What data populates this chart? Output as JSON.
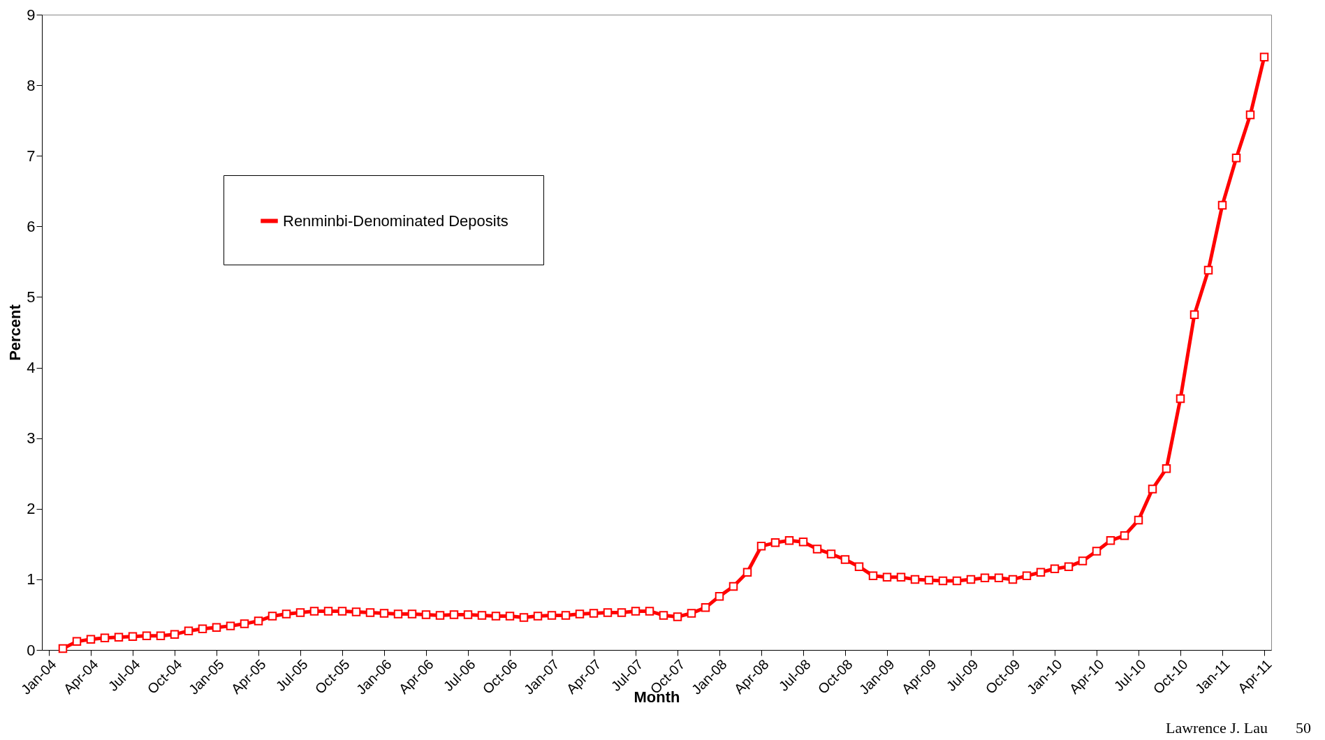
{
  "chart_data": {
    "type": "line",
    "xlabel": "Month",
    "ylabel": "Percent",
    "annotations": [
      "Lawrence J. Lau",
      "50"
    ],
    "categories": [
      "Jan-04",
      null,
      null,
      "Apr-04",
      null,
      null,
      "Jul-04",
      null,
      null,
      "Oct-04",
      null,
      null,
      "Jan-05",
      null,
      null,
      "Apr-05",
      null,
      null,
      "Jul-05",
      null,
      null,
      "Oct-05",
      null,
      null,
      "Jan-06",
      null,
      null,
      "Apr-06",
      null,
      null,
      "Jul-06",
      null,
      null,
      "Oct-06",
      null,
      null,
      "Jan-07",
      null,
      null,
      "Apr-07",
      null,
      null,
      "Jul-07",
      null,
      null,
      "Oct-07",
      null,
      null,
      "Jan-08",
      null,
      null,
      "Apr-08",
      null,
      null,
      "Jul-08",
      null,
      null,
      "Oct-08",
      null,
      null,
      "Jan-09",
      null,
      null,
      "Apr-09",
      null,
      null,
      "Jul-09",
      null,
      null,
      "Oct-09",
      null,
      null,
      "Jan-10",
      null,
      null,
      "Apr-10",
      null,
      null,
      "Jul-10",
      null,
      null,
      "Oct-10",
      null,
      null,
      "Jan-11",
      null,
      null,
      "Apr-11"
    ],
    "series": [
      {
        "name": "Renminbi-Denominated Deposits",
        "color": "#ff0000",
        "values": [
          null,
          0.02,
          0.12,
          0.15,
          0.17,
          0.18,
          0.19,
          0.2,
          0.2,
          0.22,
          0.27,
          0.3,
          0.32,
          0.34,
          0.37,
          0.41,
          0.48,
          0.51,
          0.53,
          0.55,
          0.55,
          0.55,
          0.54,
          0.53,
          0.52,
          0.51,
          0.51,
          0.5,
          0.49,
          0.5,
          0.5,
          0.49,
          0.48,
          0.48,
          0.46,
          0.48,
          0.49,
          0.49,
          0.51,
          0.52,
          0.53,
          0.53,
          0.55,
          0.55,
          0.49,
          0.47,
          0.52,
          0.6,
          0.76,
          0.9,
          1.1,
          1.47,
          1.52,
          1.55,
          1.53,
          1.43,
          1.36,
          1.28,
          1.18,
          1.05,
          1.03,
          1.03,
          1.0,
          0.99,
          0.98,
          0.98,
          1.0,
          1.02,
          1.02,
          1.0,
          1.05,
          1.1,
          1.15,
          1.18,
          1.26,
          1.4,
          1.55,
          1.62,
          1.84,
          2.28,
          2.57,
          3.56,
          4.75,
          5.38,
          6.3,
          6.97,
          7.58,
          8.4
        ]
      }
    ],
    "ylim": [
      0,
      9
    ],
    "yticks": [
      0,
      1,
      2,
      3,
      4,
      5,
      6,
      7,
      8,
      9
    ],
    "grid": false,
    "legend": "top left",
    "marker": "square",
    "line_style": "solid"
  }
}
